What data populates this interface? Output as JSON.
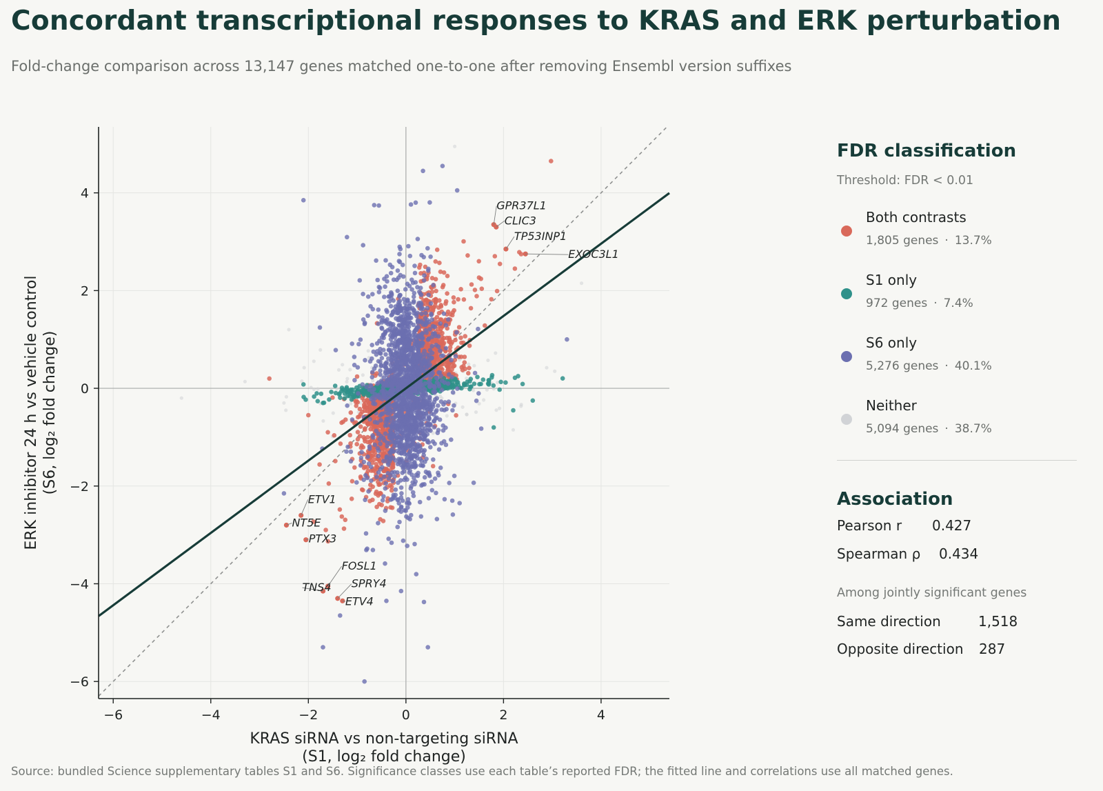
{
  "title": "Concordant transcriptional responses to KRAS and ERK perturbation",
  "subtitle": "Fold-change comparison across 13,147 genes matched one-to-one after removing Ensembl version suffixes",
  "footer": "Source: bundled Science supplementary tables S1 and S6. Significance classes use each table’s reported FDR; the fitted line and correlations use all matched genes.",
  "legend": {
    "title": "FDR classification",
    "threshold": "Threshold: FDR < 0.01",
    "separator": "·",
    "items": [
      {
        "label": "Both contrasts",
        "genes": "1,805 genes",
        "percent": "13.7%",
        "color": "#d9695a"
      },
      {
        "label": "S1 only",
        "genes": "972 genes",
        "percent": "7.4%",
        "color": "#2f918a"
      },
      {
        "label": "S6 only",
        "genes": "5,276 genes",
        "percent": "40.1%",
        "color": "#6b6fb0"
      },
      {
        "label": "Neither",
        "genes": "5,094 genes",
        "percent": "38.7%",
        "color": "#d1d3d6"
      }
    ]
  },
  "association": {
    "title": "Association",
    "pearson_label": "Pearson r",
    "pearson_value": "0.427",
    "spearman_label": "Spearman ρ",
    "spearman_value": "0.434",
    "joint_note": "Among jointly significant genes",
    "same_label": "Same direction",
    "same_value": "1,518",
    "opposite_label": "Opposite direction",
    "opposite_value": "287"
  },
  "chart_data": {
    "type": "scatter",
    "xlabel": [
      "KRAS siRNA vs non-targeting siRNA",
      "(S1, log₂ fold change)"
    ],
    "ylabel": [
      "ERK inhibitor 24 h vs vehicle control",
      "(S6, log₂ fold change)"
    ],
    "xlim": [
      -6.3,
      5.4
    ],
    "ylim": [
      -6.35,
      5.35
    ],
    "xticks": [
      -6,
      -4,
      -2,
      0,
      2,
      4
    ],
    "yticks": [
      -6,
      -4,
      -2,
      0,
      2,
      4
    ],
    "grid": true,
    "reference_lines": {
      "identity": "y = x",
      "zero_axes": true
    },
    "fit_line": {
      "slope": 0.74,
      "intercept": 0.0
    },
    "class_colors": {
      "both": "#d9695a",
      "s1": "#2f918a",
      "s6": "#6b6fb0",
      "neither": "#d1d3d6"
    },
    "labeled_genes": [
      {
        "gene": "GPR37L1",
        "x": 1.8,
        "y": 3.35
      },
      {
        "gene": "CLIC3",
        "x": 1.85,
        "y": 3.3
      },
      {
        "gene": "TP53INP1",
        "x": 2.05,
        "y": 2.85
      },
      {
        "gene": "EXOC3L1",
        "x": 2.45,
        "y": 2.75
      },
      {
        "gene": "ETV1",
        "x": -2.15,
        "y": -2.6
      },
      {
        "gene": "NT5E",
        "x": -2.45,
        "y": -2.8
      },
      {
        "gene": "PTX3",
        "x": -2.05,
        "y": -3.1
      },
      {
        "gene": "TNS4",
        "x": -1.7,
        "y": -4.15
      },
      {
        "gene": "FOSL1",
        "x": -1.6,
        "y": -4.05
      },
      {
        "gene": "SPRY4",
        "x": -1.4,
        "y": -4.3
      },
      {
        "gene": "ETV4",
        "x": -1.3,
        "y": -4.35
      }
    ],
    "points": [
      {
        "x": -2.8,
        "y": 0.2,
        "cls": "both"
      },
      {
        "x": -2.0,
        "y": -0.55,
        "cls": "both"
      },
      {
        "x": -1.6,
        "y": -0.9,
        "cls": "both"
      },
      {
        "x": -1.45,
        "y": 0.05,
        "cls": "s1"
      },
      {
        "x": -2.1,
        "y": 0.08,
        "cls": "s1"
      },
      {
        "x": -1.7,
        "y": -0.3,
        "cls": "s1"
      },
      {
        "x": 2.3,
        "y": 0.25,
        "cls": "s1"
      },
      {
        "x": 2.6,
        "y": -0.25,
        "cls": "s1"
      },
      {
        "x": 2.2,
        "y": -0.45,
        "cls": "s1"
      },
      {
        "x": 1.8,
        "y": -0.8,
        "cls": "s1"
      },
      {
        "x": -2.1,
        "y": 3.85,
        "cls": "s6"
      },
      {
        "x": -0.65,
        "y": 3.75,
        "cls": "s6"
      },
      {
        "x": 0.35,
        "y": 4.45,
        "cls": "s6"
      },
      {
        "x": 0.75,
        "y": 4.55,
        "cls": "s6"
      },
      {
        "x": 1.05,
        "y": 4.05,
        "cls": "s6"
      },
      {
        "x": 0.2,
        "y": 3.8,
        "cls": "s6"
      },
      {
        "x": 3.3,
        "y": 1.0,
        "cls": "s6"
      },
      {
        "x": -2.5,
        "y": -2.15,
        "cls": "s6"
      },
      {
        "x": -1.7,
        "y": -5.3,
        "cls": "s6"
      },
      {
        "x": -0.85,
        "y": -6.0,
        "cls": "s6"
      },
      {
        "x": 0.45,
        "y": -5.3,
        "cls": "s6"
      },
      {
        "x": -1.35,
        "y": -4.65,
        "cls": "s6"
      },
      {
        "x": -0.4,
        "y": -4.35,
        "cls": "s6"
      },
      {
        "x": -0.1,
        "y": -4.15,
        "cls": "s6"
      },
      {
        "x": 0.95,
        "y": -2.3,
        "cls": "s6"
      },
      {
        "x": 1.1,
        "y": -2.35,
        "cls": "s6"
      },
      {
        "x": -4.6,
        "y": -0.2,
        "cls": "neither"
      },
      {
        "x": -2.5,
        "y": -0.3,
        "cls": "neither"
      },
      {
        "x": -2.4,
        "y": 1.2,
        "cls": "neither"
      },
      {
        "x": 3.6,
        "y": 2.15,
        "cls": "neither"
      },
      {
        "x": 3.05,
        "y": 0.35,
        "cls": "neither"
      },
      {
        "x": 2.2,
        "y": -0.85,
        "cls": "neither"
      },
      {
        "x": 1.0,
        "y": 4.95,
        "cls": "neither"
      }
    ]
  }
}
